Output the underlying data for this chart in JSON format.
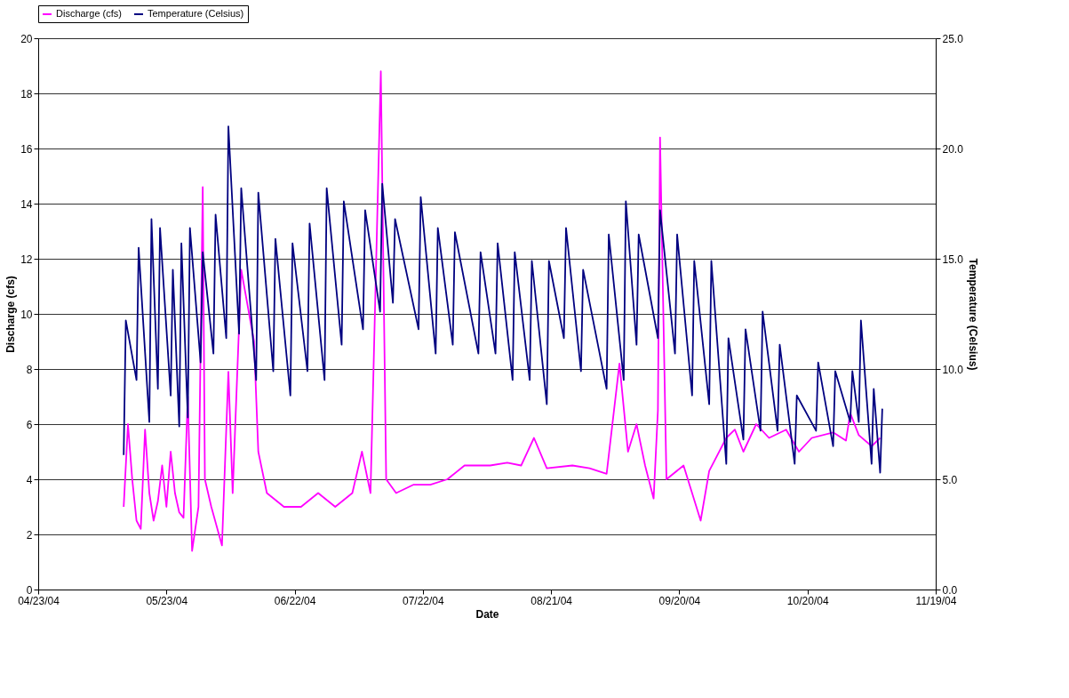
{
  "chart_data": {
    "type": "line",
    "xlabel": "Date",
    "ylabel": "Discharge (cfs)",
    "y2label": "Temperature (Celsius)",
    "xlim": [
      "2004-04-23",
      "2004-11-19"
    ],
    "xticks": [
      {
        "value": "2004-04-23",
        "label": "04/23/04"
      },
      {
        "value": "2004-05-23",
        "label": "05/23/04"
      },
      {
        "value": "2004-06-22",
        "label": "06/22/04"
      },
      {
        "value": "2004-07-22",
        "label": "07/22/04"
      },
      {
        "value": "2004-08-21",
        "label": "08/21/04"
      },
      {
        "value": "2004-09-20",
        "label": "09/20/04"
      },
      {
        "value": "2004-10-20",
        "label": "10/20/04"
      },
      {
        "value": "2004-11-19",
        "label": "11/19/04"
      }
    ],
    "ylim": [
      0,
      20
    ],
    "yticks": [
      0,
      2,
      4,
      6,
      8,
      10,
      12,
      14,
      16,
      18,
      20
    ],
    "y2lim": [
      0,
      25
    ],
    "y2ticks": [
      {
        "value": 0,
        "label": "0.0"
      },
      {
        "value": 5,
        "label": "5.0"
      },
      {
        "value": 10,
        "label": "10.0"
      },
      {
        "value": 15,
        "label": "15.0"
      },
      {
        "value": 20,
        "label": "20.0"
      },
      {
        "value": 25,
        "label": "25.0"
      }
    ],
    "grid": "y",
    "legend": "top",
    "series": [
      {
        "name": "Discharge (cfs)",
        "color": "#ff00ff",
        "type": "line",
        "x": [
          "2004-05-13",
          "2004-05-14",
          "2004-05-15",
          "2004-05-16",
          "2004-05-17",
          "2004-05-18",
          "2004-05-19",
          "2004-05-20",
          "2004-05-21",
          "2004-05-22",
          "2004-05-23",
          "2004-05-24",
          "2004-05-25",
          "2004-05-26",
          "2004-05-27",
          "2004-05-28",
          "2004-05-29",
          "2004-05-30T12:00",
          "2004-05-31T12:00",
          "2004-06-01",
          "2004-06-02T12:00",
          "2004-06-05",
          "2004-06-06T12:00",
          "2004-06-07T12:00",
          "2004-06-09T12:00",
          "2004-06-12T12:00",
          "2004-06-13T12:00",
          "2004-06-15T12:00",
          "2004-06-19T12:00",
          "2004-06-23T12:00",
          "2004-06-27T12:00",
          "2004-07-01T12:00",
          "2004-07-05T12:00",
          "2004-07-07T18:00",
          "2004-07-09T18:00",
          "2004-07-12T04:00",
          "2004-07-13T10:00",
          "2004-07-15T18:00",
          "2004-07-19T18:00",
          "2004-07-23T18:00",
          "2004-07-27T18:00",
          "2004-07-31T18:00",
          "2004-08-06T18:00",
          "2004-08-10T18:00",
          "2004-08-14",
          "2004-08-17",
          "2004-08-20",
          "2004-08-26",
          "2004-08-30",
          "2004-09-03",
          "2004-09-06",
          "2004-09-08",
          "2004-09-10",
          "2004-09-12",
          "2004-09-14",
          "2004-09-15",
          "2004-09-15T12:00",
          "2004-09-17",
          "2004-09-21",
          "2004-09-25",
          "2004-09-27",
          "2004-10-01",
          "2004-10-03",
          "2004-10-05",
          "2004-10-08",
          "2004-10-11",
          "2004-10-15",
          "2004-10-18",
          "2004-10-21",
          "2004-10-26",
          "2004-10-29",
          "2004-10-30",
          "2004-11-01",
          "2004-11-04",
          "2004-11-06"
        ],
        "values": [
          3.0,
          6.0,
          4.0,
          2.5,
          2.2,
          5.8,
          3.5,
          2.5,
          3.2,
          4.5,
          3.0,
          5.0,
          3.5,
          2.8,
          2.6,
          7.0,
          1.4,
          3.0,
          14.6,
          4.0,
          3.0,
          1.6,
          7.9,
          3.5,
          11.6,
          9.0,
          5.0,
          3.5,
          3.0,
          3.0,
          3.5,
          3.0,
          3.5,
          5.0,
          3.5,
          18.8,
          4.0,
          3.5,
          3.8,
          3.8,
          4.0,
          4.5,
          4.5,
          4.6,
          4.5,
          5.5,
          4.4,
          4.5,
          4.4,
          4.2,
          8.2,
          5.0,
          6.0,
          4.5,
          3.3,
          6.5,
          16.4,
          4.0,
          4.5,
          2.5,
          4.3,
          5.5,
          5.8,
          5.0,
          6.0,
          5.5,
          5.8,
          5.0,
          5.5,
          5.7,
          5.4,
          6.4,
          5.6,
          5.2,
          5.5
        ]
      },
      {
        "name": "Temperature (Celsius)",
        "color": "#000080",
        "type": "line",
        "axis": "y2",
        "x": [
          "2004-05-13T00:00",
          "2004-05-13T12:00",
          "2004-05-16T00:00",
          "2004-05-16T12:00",
          "2004-05-19T00:00",
          "2004-05-19T12:00",
          "2004-05-21T00:00",
          "2004-05-21T12:00",
          "2004-05-24T00:00",
          "2004-05-24T12:00",
          "2004-05-26T00:00",
          "2004-05-26T12:00",
          "2004-05-28T00:00",
          "2004-05-28T12:00",
          "2004-05-31T00:00",
          "2004-05-31T12:00",
          "2004-06-03T00:00",
          "2004-06-03T12:00",
          "2004-06-06T00:00",
          "2004-06-06T12:00",
          "2004-06-09T00:00",
          "2004-06-09T12:00",
          "2004-06-13T00:00",
          "2004-06-13T12:00",
          "2004-06-17T00:00",
          "2004-06-17T12:00",
          "2004-06-21T00:00",
          "2004-06-21T12:00",
          "2004-06-25T00:00",
          "2004-06-25T12:00",
          "2004-06-29T00:00",
          "2004-06-29T12:00",
          "2004-07-03T00:00",
          "2004-07-03T12:00",
          "2004-07-08T00:00",
          "2004-07-08T12:00",
          "2004-07-12T00:00",
          "2004-07-12T12:00",
          "2004-07-15T00:00",
          "2004-07-15T12:00",
          "2004-07-21T00:00",
          "2004-07-21T12:00",
          "2004-07-25T00:00",
          "2004-07-25T12:00",
          "2004-07-29T00:00",
          "2004-07-29T12:00",
          "2004-08-04T00:00",
          "2004-08-04T12:00",
          "2004-08-08T00:00",
          "2004-08-08T12:00",
          "2004-08-12T00:00",
          "2004-08-12T12:00",
          "2004-08-16T00:00",
          "2004-08-16T12:00",
          "2004-08-20T00:00",
          "2004-08-20T12:00",
          "2004-08-24T00:00",
          "2004-08-24T12:00",
          "2004-08-28T00:00",
          "2004-08-28T12:00",
          "2004-09-03T00:00",
          "2004-09-03T12:00",
          "2004-09-07T00:00",
          "2004-09-07T12:00",
          "2004-09-10T00:00",
          "2004-09-10T12:00",
          "2004-09-15T00:00",
          "2004-09-15T12:00",
          "2004-09-19T00:00",
          "2004-09-19T12:00",
          "2004-09-23T00:00",
          "2004-09-23T12:00",
          "2004-09-27T00:00",
          "2004-09-27T12:00",
          "2004-10-01T00:00",
          "2004-10-01T12:00",
          "2004-10-05T00:00",
          "2004-10-05T12:00",
          "2004-10-09T00:00",
          "2004-10-09T12:00",
          "2004-10-13T00:00",
          "2004-10-13T12:00",
          "2004-10-17T00:00",
          "2004-10-17T12:00",
          "2004-10-22T00:00",
          "2004-10-22T12:00",
          "2004-10-26T00:00",
          "2004-10-26T12:00",
          "2004-10-30T00:00",
          "2004-10-30T12:00",
          "2004-11-01T00:00",
          "2004-11-01T12:00",
          "2004-11-04T00:00",
          "2004-11-04T12:00",
          "2004-11-06T00:00",
          "2004-11-06T12:00"
        ],
        "values": [
          6.1,
          12.2,
          9.5,
          15.5,
          7.6,
          16.8,
          9.1,
          16.4,
          8.8,
          14.5,
          7.4,
          15.7,
          7.8,
          16.4,
          10.3,
          15.3,
          10.7,
          17.0,
          11.4,
          21.0,
          11.6,
          18.2,
          9.5,
          18.0,
          9.9,
          15.9,
          8.8,
          15.7,
          9.9,
          16.6,
          9.5,
          18.2,
          11.1,
          17.6,
          11.8,
          17.2,
          12.6,
          18.4,
          13.0,
          16.8,
          11.8,
          17.8,
          10.7,
          16.4,
          11.1,
          16.2,
          10.7,
          15.3,
          10.7,
          15.7,
          9.5,
          15.3,
          9.5,
          14.9,
          8.4,
          14.9,
          11.4,
          16.4,
          9.9,
          14.5,
          9.1,
          16.1,
          9.5,
          17.6,
          11.1,
          16.1,
          11.4,
          17.2,
          10.7,
          16.1,
          8.8,
          14.9,
          8.4,
          14.9,
          5.7,
          11.4,
          6.8,
          11.8,
          7.2,
          12.6,
          7.2,
          11.1,
          5.7,
          8.8,
          7.2,
          10.3,
          6.5,
          9.9,
          7.6,
          9.9,
          7.6,
          12.2,
          5.7,
          9.1,
          5.3,
          8.2
        ]
      }
    ]
  }
}
